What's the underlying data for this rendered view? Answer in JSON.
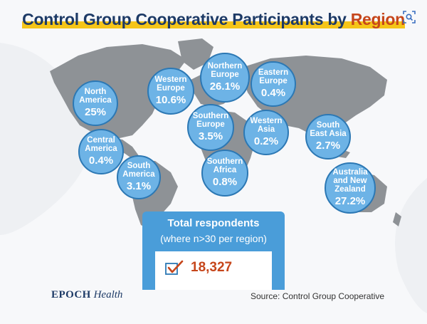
{
  "title": {
    "part1": "Control Group Cooperative Participants by ",
    "highlight": "Region"
  },
  "chart_data": {
    "type": "bubble-map",
    "title": "Control Group Cooperative Participants by Region",
    "unit": "%",
    "regions": [
      {
        "name": "North\nAmerica",
        "label": "25%",
        "value": 25
      },
      {
        "name": "Central\nAmerica",
        "label": "0.4%",
        "value": 0.4
      },
      {
        "name": "South\nAmerica",
        "label": "3.1%",
        "value": 3.1
      },
      {
        "name": "Western\nEurope",
        "label": "10.6%",
        "value": 10.6
      },
      {
        "name": "Northern\nEurope",
        "label": "26.1%",
        "value": 26.1
      },
      {
        "name": "Eastern\nEurope",
        "label": "0.4%",
        "value": 0.4
      },
      {
        "name": "Southern\nEurope",
        "label": "3.5%",
        "value": 3.5
      },
      {
        "name": "Western\nAsia",
        "label": "0.2%",
        "value": 0.2
      },
      {
        "name": "Southern\nAfrica",
        "label": "0.8%",
        "value": 0.8
      },
      {
        "name": "South\nEast Asia",
        "label": "2.7%",
        "value": 2.7
      },
      {
        "name": "Australia\nand New\nZealand",
        "label": "27.2%",
        "value": 27.2
      }
    ]
  },
  "total": {
    "heading": "Total respondents",
    "subheading": "(where n>30 per region)",
    "value": "18,327"
  },
  "brand": {
    "part1": "EPOCH",
    "part2": "Health"
  },
  "source": "Source: Control Group Cooperative",
  "colors": {
    "bubble_fill": "#6db3e6",
    "bubble_border": "#2c78b4",
    "title": "#1d3a66",
    "highlight": "#c6461b",
    "underline": "#f5c518",
    "map": "#8e9296"
  },
  "icons": [
    "lens-icon",
    "checkmark-icon"
  ]
}
